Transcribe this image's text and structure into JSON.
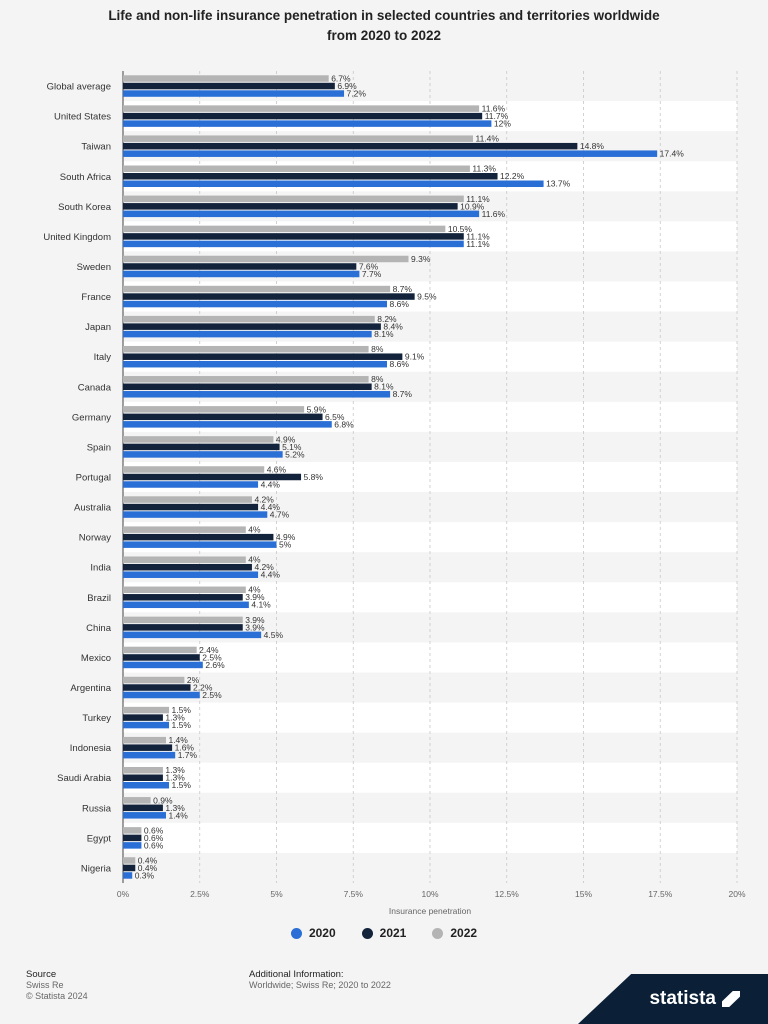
{
  "chart_data": {
    "type": "bar",
    "orientation": "horizontal",
    "title": "Life and non-life insurance penetration in selected countries and territories worldwide from 2020 to 2022",
    "xlabel": "Insurance penetration",
    "ylabel": "",
    "xlim": [
      0,
      20
    ],
    "xticks": [
      "0%",
      "2.5%",
      "5%",
      "7.5%",
      "10%",
      "12.5%",
      "15%",
      "17.5%",
      "20%"
    ],
    "grid": true,
    "legend_position": "bottom",
    "categories": [
      "Global average",
      "United States",
      "Taiwan",
      "South Africa",
      "South Korea",
      "United Kingdom",
      "Sweden",
      "France",
      "Japan",
      "Italy",
      "Canada",
      "Germany",
      "Spain",
      "Portugal",
      "Australia",
      "Norway",
      "India",
      "Brazil",
      "China",
      "Mexico",
      "Argentina",
      "Turkey",
      "Indonesia",
      "Saudi Arabia",
      "Russia",
      "Egypt",
      "Nigeria"
    ],
    "series": [
      {
        "name": "2022",
        "color": "#b4b4b4",
        "values": [
          6.7,
          11.6,
          11.4,
          11.3,
          11.1,
          10.5,
          9.3,
          8.7,
          8.2,
          8,
          8,
          5.9,
          4.9,
          4.6,
          4.2,
          4,
          4,
          4,
          3.9,
          2.4,
          2,
          1.5,
          1.4,
          1.3,
          0.9,
          0.6,
          0.4
        ],
        "labels": [
          "6.7%",
          "11.6%",
          "11.4%",
          "11.3%",
          "11.1%",
          "10.5%",
          "9.3%",
          "8.7%",
          "8.2%",
          "8%",
          "8%",
          "5.9%",
          "4.9%",
          "4.6%",
          "4.2%",
          "4%",
          "4%",
          "4%",
          "3.9%",
          "2.4%",
          "2%",
          "1.5%",
          "1.4%",
          "1.3%",
          "0.9%",
          "0.6%",
          "0.4%"
        ]
      },
      {
        "name": "2021",
        "color": "#13233c",
        "values": [
          6.9,
          11.7,
          14.8,
          12.2,
          10.9,
          11.1,
          7.6,
          9.5,
          8.4,
          9.1,
          8.1,
          6.5,
          5.1,
          5.8,
          4.4,
          4.9,
          4.2,
          3.9,
          3.9,
          2.5,
          2.2,
          1.3,
          1.6,
          1.3,
          1.3,
          0.6,
          0.4
        ],
        "labels": [
          "6.9%",
          "11.7%",
          "14.8%",
          "12.2%",
          "10.9%",
          "11.1%",
          "7.6%",
          "9.5%",
          "8.4%",
          "9.1%",
          "8.1%",
          "6.5%",
          "5.1%",
          "5.8%",
          "4.4%",
          "4.9%",
          "4.2%",
          "3.9%",
          "3.9%",
          "2.5%",
          "2.2%",
          "1.3%",
          "1.6%",
          "1.3%",
          "1.3%",
          "0.6%",
          "0.4%"
        ]
      },
      {
        "name": "2020",
        "color": "#2a6fd6",
        "values": [
          7.2,
          12,
          17.4,
          13.7,
          11.6,
          11.1,
          7.7,
          8.6,
          8.1,
          8.6,
          8.7,
          6.8,
          5.2,
          4.4,
          4.7,
          5,
          4.4,
          4.1,
          4.5,
          2.6,
          2.5,
          1.5,
          1.7,
          1.5,
          1.4,
          0.6,
          0.3
        ],
        "labels": [
          "7.2%",
          "12%",
          "17.4%",
          "13.7%",
          "11.6%",
          "11.1%",
          "7.7%",
          "8.6%",
          "8.1%",
          "8.6%",
          "8.7%",
          "6.8%",
          "5.2%",
          "4.4%",
          "4.7%",
          "5%",
          "4.4%",
          "4.1%",
          "4.5%",
          "2.6%",
          "2.5%",
          "1.5%",
          "1.7%",
          "1.5%",
          "1.4%",
          "0.6%",
          "0.3%"
        ]
      }
    ]
  },
  "legend": [
    {
      "label": "2020",
      "color": "#2a6fd6"
    },
    {
      "label": "2021",
      "color": "#13233c"
    },
    {
      "label": "2022",
      "color": "#b4b4b4"
    }
  ],
  "footer": {
    "source_heading": "Source",
    "source_name": "Swiss Re",
    "copyright": "© Statista 2024",
    "additional_heading": "Additional Information:",
    "additional_text": "Worldwide; Swiss Re; 2020 to 2022"
  },
  "brand": {
    "name": "statista"
  }
}
